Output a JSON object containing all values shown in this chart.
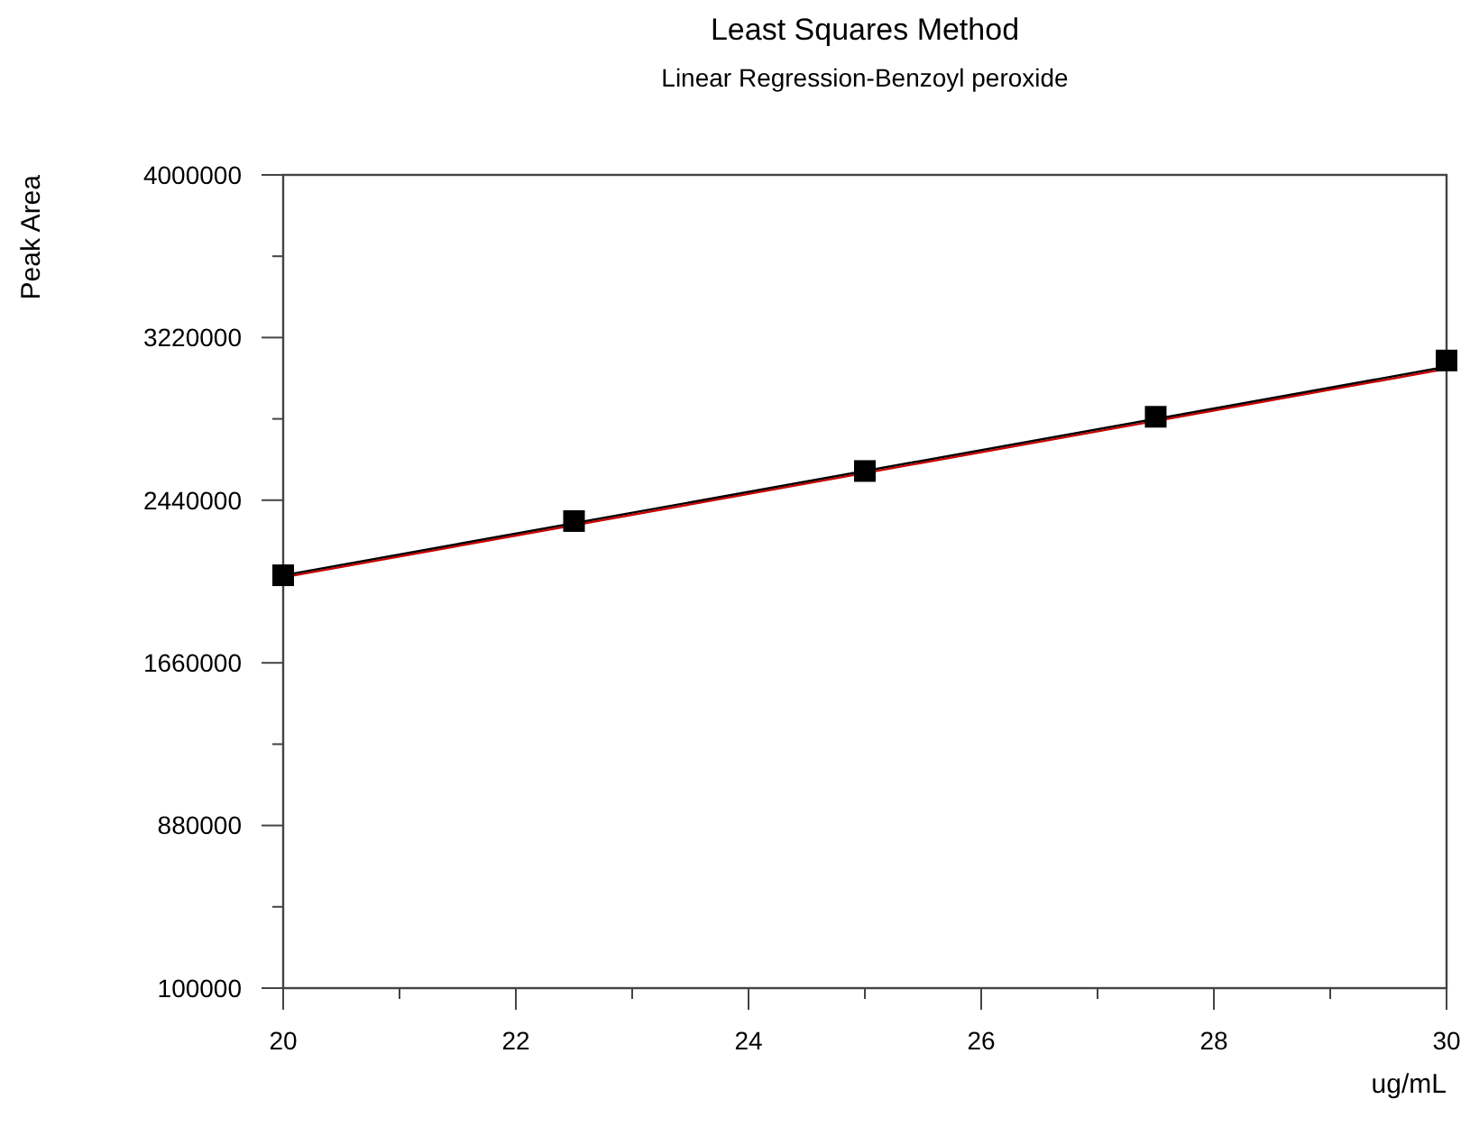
{
  "chart_data": {
    "type": "scatter",
    "title": "Least Squares Method",
    "subtitle": "Linear Regression-Benzoyl peroxide",
    "xlabel": "ug/mL",
    "ylabel": "Peak Area",
    "xlim": [
      20,
      30
    ],
    "xticks": [
      20,
      {
        "value": 21,
        "label": null
      },
      22,
      {
        "value": 23,
        "label": null
      },
      24,
      {
        "value": 25,
        "label": null
      },
      26,
      {
        "value": 27,
        "label": null
      },
      28,
      {
        "value": 29,
        "label": null
      },
      30
    ],
    "ylim": [
      100000,
      4000000
    ],
    "yticks": [
      100000,
      {
        "value": 490000,
        "label": null
      },
      880000,
      {
        "value": 1270000,
        "label": null
      },
      1660000,
      {
        "value": 2050000,
        "label": null
      },
      2440000,
      {
        "value": 2830000,
        "label": null
      },
      3220000,
      {
        "value": 3610000,
        "label": null
      },
      4000000
    ],
    "grid": false,
    "series": [
      {
        "type": "line",
        "x": [
          20,
          30
        ],
        "values": [
          2070000,
          3070000
        ],
        "color": "#cc0000",
        "marker": "none"
      },
      {
        "type": "line",
        "x": [
          20,
          30
        ],
        "values": [
          2080000,
          3080000
        ],
        "color": "#000000",
        "marker": "none"
      },
      {
        "x": [
          20,
          22.5,
          25,
          27.5,
          30
        ],
        "values": [
          2080000,
          2340000,
          2580000,
          2840000,
          3110000
        ],
        "color": "#000000",
        "marker": "square"
      }
    ]
  }
}
